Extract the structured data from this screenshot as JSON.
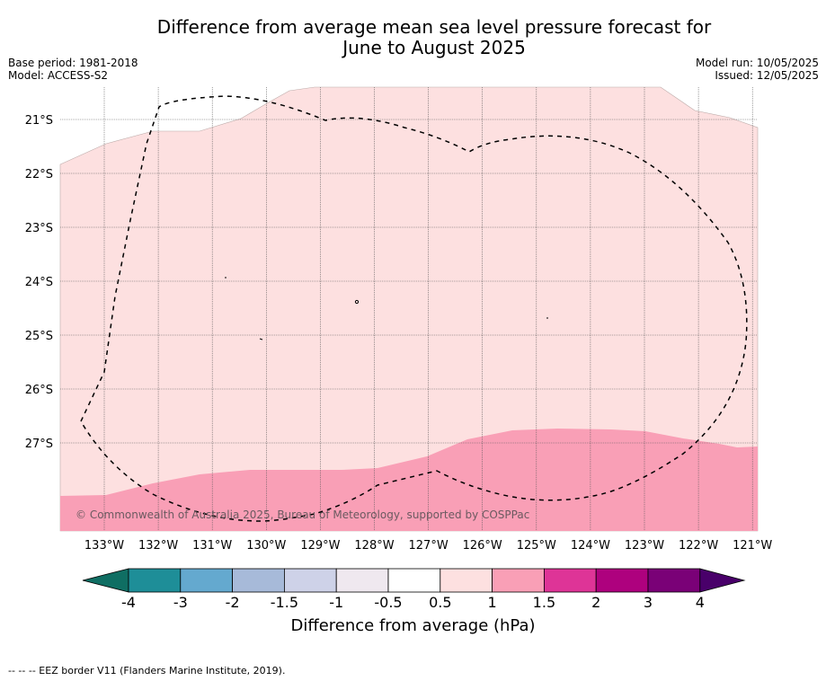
{
  "title": {
    "line1": "Difference from average mean sea level pressure forecast for",
    "line2": "June to August 2025"
  },
  "meta_left": {
    "base_period": "Base period: 1981-2018",
    "model": "Model: ACCESS-S2"
  },
  "meta_right": {
    "model_run": "Model run: 10/05/2025",
    "issued": "Issued: 12/05/2025"
  },
  "map": {
    "lat_labels": [
      "21°S",
      "22°S",
      "23°S",
      "24°S",
      "25°S",
      "26°S",
      "27°S"
    ],
    "lon_labels": [
      "133°W",
      "132°W",
      "131°W",
      "130°W",
      "129°W",
      "128°W",
      "127°W",
      "126°W",
      "125°W",
      "124°W",
      "123°W",
      "122°W",
      "121°W"
    ],
    "copyright": "© Commonwealth of Australia 2025, Bureau of Meteorology, supported by COSPPac",
    "colors": {
      "light_pink": "#fde0e0",
      "pink": "#f99fb6",
      "outline": "#000000"
    }
  },
  "colorbar": {
    "title": "Difference from average (hPa)",
    "ticks": [
      "-4",
      "-3",
      "-2",
      "-1.5",
      "-1",
      "-0.5",
      "0.5",
      "1",
      "1.5",
      "2",
      "3",
      "4"
    ],
    "colors": [
      "#0f6e63",
      "#1e8e98",
      "#64a9cf",
      "#a7bad9",
      "#ced2e8",
      "#efe8ef",
      "#ffffff",
      "#fde0e0",
      "#f99fb6",
      "#de3497",
      "#ae017e",
      "#7a0177",
      "#49006a"
    ]
  },
  "footnote": "--  --  -- EEZ border V11 (Flanders Marine Institute, 2019)."
}
